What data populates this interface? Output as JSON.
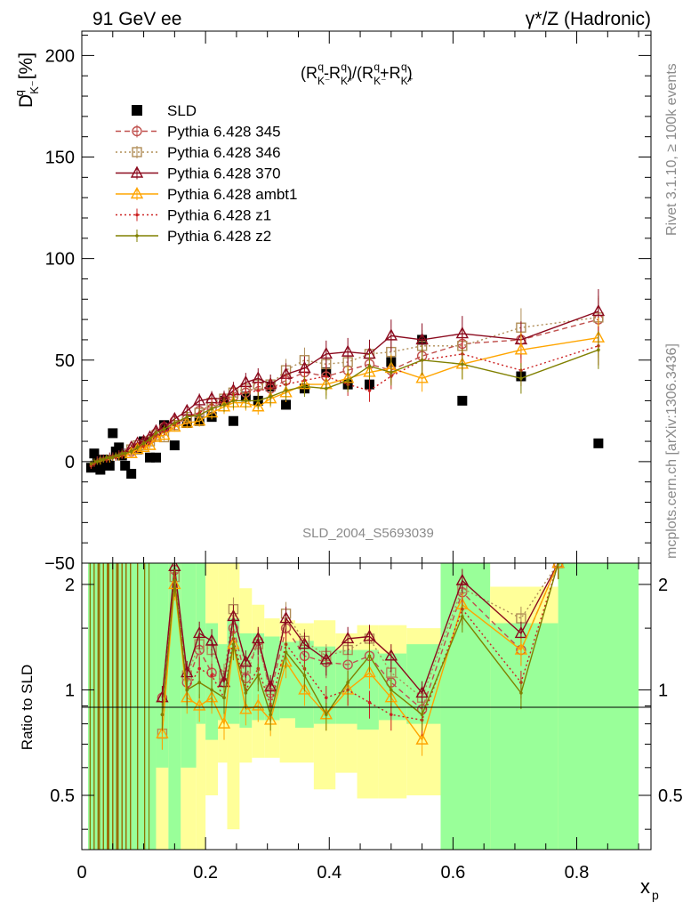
{
  "header": {
    "left": "91 GeV ee",
    "right": "γ*/Z (Hadronic)"
  },
  "side_labels": {
    "rivet": "Rivet 3.1.10, ≥ 100k events",
    "mcplots": "mcplots.cern.ch [arXiv:1306.3436]"
  },
  "watermark": "SLD_2004_S5693039",
  "colors": {
    "data": "#000000",
    "p345": "#c0504d",
    "p346": "#b08d57",
    "p370": "#8b0a1e",
    "ambt1": "#ffa500",
    "z1": "#cc2222",
    "z2": "#808000",
    "band_inner": "#99ff99",
    "band_outer": "#ffff99"
  },
  "chart_data": [
    {
      "type": "line",
      "role": "main",
      "ylabel": "D_K⁻^q [%]",
      "annotation": "(R_K⁻^q-R_K⁺^q)/(R_K⁻^q+R_K⁺^q)",
      "xlim": [
        0,
        0.92
      ],
      "ylim": [
        -50,
        212
      ],
      "yticks": [
        -50,
        0,
        50,
        100,
        150,
        200
      ],
      "xticks": [
        0,
        0.2,
        0.4,
        0.6,
        0.8
      ],
      "legend_position": "top-left",
      "x": [
        0.015,
        0.02,
        0.025,
        0.03,
        0.035,
        0.04,
        0.045,
        0.05,
        0.055,
        0.06,
        0.065,
        0.07,
        0.08,
        0.09,
        0.1,
        0.11,
        0.12,
        0.133,
        0.15,
        0.17,
        0.19,
        0.21,
        0.23,
        0.245,
        0.265,
        0.285,
        0.305,
        0.33,
        0.36,
        0.395,
        0.43,
        0.465,
        0.5,
        0.55,
        0.615,
        0.71,
        0.835
      ],
      "series": [
        {
          "name": "SLD",
          "style": "data",
          "values": [
            -3,
            4,
            0,
            -4,
            1,
            0,
            -2,
            14,
            5,
            7,
            3,
            -2,
            -6,
            6,
            10,
            2,
            2,
            18,
            8,
            19,
            20,
            22,
            30,
            20,
            32,
            30,
            37,
            28,
            36,
            44,
            38,
            38,
            49,
            60,
            30,
            42,
            9
          ]
        },
        {
          "name": "Pythia 6.428 345",
          "style": "dashed",
          "marker": "circle",
          "color_key": "p345",
          "values": [
            -1,
            0,
            1,
            2,
            1,
            2,
            2,
            2,
            3,
            3,
            3,
            4,
            5,
            7,
            9,
            11,
            14,
            17,
            20,
            21,
            25,
            26,
            30,
            32,
            34,
            37,
            36,
            40,
            44,
            42,
            45,
            48,
            45,
            52,
            58,
            60,
            70
          ]
        },
        {
          "name": "Pythia 6.428 346",
          "style": "dotted",
          "marker": "square",
          "color_key": "p346",
          "values": [
            -1,
            0,
            1,
            1,
            2,
            2,
            2,
            3,
            3,
            4,
            4,
            5,
            6,
            8,
            8,
            10,
            13,
            12,
            18,
            22,
            24,
            29,
            31,
            34,
            36,
            38,
            38,
            45,
            50,
            48,
            49,
            53,
            54,
            57,
            57,
            66,
            71
          ]
        },
        {
          "name": "Pythia 6.428 370",
          "style": "solid",
          "marker": "triangle",
          "color_key": "p370",
          "values": [
            -1,
            0,
            1,
            1,
            2,
            2,
            3,
            3,
            3,
            4,
            5,
            5,
            7,
            9,
            10,
            12,
            15,
            17,
            21,
            25,
            30,
            31,
            31,
            35,
            39,
            41,
            38,
            43,
            46,
            53,
            54,
            53,
            62,
            60,
            63,
            60,
            74
          ]
        },
        {
          "name": "Pythia 6.428 ambt1",
          "style": "solid",
          "marker": "triangle",
          "color_key": "ambt1",
          "values": [
            -2,
            -1,
            0,
            0,
            1,
            1,
            1,
            2,
            2,
            2,
            3,
            3,
            4,
            6,
            7,
            8,
            12,
            13,
            17,
            19,
            20,
            24,
            27,
            29,
            29,
            27,
            31,
            34,
            38,
            38,
            41,
            44,
            46,
            41,
            48,
            55,
            61
          ]
        },
        {
          "name": "Pythia 6.428 z1",
          "style": "dotted",
          "marker": "dot",
          "color_key": "z1",
          "values": [
            -2,
            -1,
            0,
            1,
            1,
            1,
            2,
            2,
            2,
            3,
            3,
            4,
            5,
            7,
            8,
            10,
            13,
            15,
            18,
            22,
            24,
            28,
            30,
            33,
            34,
            35,
            36,
            38,
            40,
            42,
            38,
            35,
            42,
            50,
            53,
            45,
            57
          ]
        },
        {
          "name": "Pythia 6.428 z2",
          "style": "solid",
          "marker": "dot",
          "color_key": "z2",
          "values": [
            -1,
            0,
            0,
            1,
            1,
            2,
            2,
            2,
            3,
            3,
            4,
            4,
            5,
            7,
            9,
            11,
            14,
            16,
            19,
            22,
            23,
            26,
            28,
            30,
            30,
            30,
            32,
            35,
            37,
            36,
            40,
            47,
            44,
            50,
            48,
            41,
            55
          ]
        }
      ]
    },
    {
      "type": "line",
      "role": "ratio",
      "ylabel": "Ratio to SLD",
      "xlabel": "x_p",
      "xlim": [
        0,
        0.92
      ],
      "ylim": [
        0.35,
        2.3
      ],
      "yticks": [
        0.5,
        1,
        2
      ],
      "xticks": [
        0,
        0.2,
        0.4,
        0.6,
        0.8
      ],
      "bands": [
        {
          "x0": 0.01,
          "x1": 0.12,
          "inner": [
            0.35,
            2.3
          ],
          "outer": [
            0.35,
            2.3
          ]
        },
        {
          "x0": 0.12,
          "x1": 0.14,
          "inner": [
            0.6,
            2.3
          ],
          "outer": [
            0.35,
            2.3
          ]
        },
        {
          "x0": 0.14,
          "x1": 0.16,
          "inner": [
            0.35,
            2.3
          ],
          "outer": [
            0.35,
            2.3
          ]
        },
        {
          "x0": 0.16,
          "x1": 0.185,
          "inner": [
            0.6,
            2.3
          ],
          "outer": [
            0.35,
            2.3
          ]
        },
        {
          "x0": 0.185,
          "x1": 0.2,
          "inner": [
            0.8,
            2.3
          ],
          "outer": [
            0.35,
            2.3
          ]
        },
        {
          "x0": 0.2,
          "x1": 0.22,
          "inner": [
            0.72,
            1.55
          ],
          "outer": [
            0.5,
            2.3
          ]
        },
        {
          "x0": 0.22,
          "x1": 0.235,
          "inner": [
            0.82,
            1.35
          ],
          "outer": [
            0.62,
            2.3
          ]
        },
        {
          "x0": 0.235,
          "x1": 0.255,
          "inner": [
            0.8,
            1.6
          ],
          "outer": [
            0.4,
            2.3
          ]
        },
        {
          "x0": 0.255,
          "x1": 0.275,
          "inner": [
            0.78,
            1.45
          ],
          "outer": [
            0.62,
            1.95
          ]
        },
        {
          "x0": 0.275,
          "x1": 0.295,
          "inner": [
            0.82,
            1.45
          ],
          "outer": [
            0.64,
            1.75
          ]
        },
        {
          "x0": 0.295,
          "x1": 0.32,
          "inner": [
            0.82,
            1.42
          ],
          "outer": [
            0.64,
            1.6
          ]
        },
        {
          "x0": 0.32,
          "x1": 0.345,
          "inner": [
            0.83,
            1.37
          ],
          "outer": [
            0.62,
            1.58
          ]
        },
        {
          "x0": 0.345,
          "x1": 0.375,
          "inner": [
            0.78,
            1.38
          ],
          "outer": [
            0.62,
            1.55
          ]
        },
        {
          "x0": 0.375,
          "x1": 0.41,
          "inner": [
            0.8,
            1.33
          ],
          "outer": [
            0.52,
            1.58
          ]
        },
        {
          "x0": 0.41,
          "x1": 0.445,
          "inner": [
            0.8,
            1.3
          ],
          "outer": [
            0.58,
            1.45
          ]
        },
        {
          "x0": 0.445,
          "x1": 0.48,
          "inner": [
            0.77,
            1.3
          ],
          "outer": [
            0.49,
            1.53
          ]
        },
        {
          "x0": 0.48,
          "x1": 0.525,
          "inner": [
            0.82,
            1.27
          ],
          "outer": [
            0.49,
            1.53
          ]
        },
        {
          "x0": 0.525,
          "x1": 0.58,
          "inner": [
            0.8,
            1.35
          ],
          "outer": [
            0.5,
            1.5
          ]
        },
        {
          "x0": 0.58,
          "x1": 0.66,
          "inner": [
            0.35,
            2.3
          ],
          "outer": [
            0.35,
            2.3
          ]
        },
        {
          "x0": 0.66,
          "x1": 0.77,
          "inner": [
            0.35,
            1.55
          ],
          "outer": [
            0.35,
            1.97
          ]
        },
        {
          "x0": 0.77,
          "x1": 0.9,
          "inner": [
            0.35,
            2.3
          ],
          "outer": [
            0.35,
            2.3
          ]
        }
      ],
      "x": [
        0.13,
        0.15,
        0.17,
        0.19,
        0.21,
        0.23,
        0.245,
        0.265,
        0.285,
        0.305,
        0.33,
        0.36,
        0.395,
        0.43,
        0.465,
        0.5,
        0.55,
        0.615,
        0.71,
        0.77
      ],
      "series": [
        {
          "name": "Pythia 6.428 345",
          "color_key": "p345",
          "style": "dashed",
          "marker": "circle",
          "values": [
            0.95,
            2.2,
            1.05,
            1.3,
            1.12,
            1.05,
            1.5,
            1.08,
            1.38,
            0.98,
            1.5,
            1.25,
            1.2,
            1.18,
            1.25,
            1.05,
            0.88,
            1.9,
            1.3,
            2.3
          ]
        },
        {
          "name": "Pythia 6.428 346",
          "color_key": "p346",
          "style": "dotted",
          "marker": "square",
          "values": [
            0.75,
            2.1,
            1.1,
            1.35,
            1.3,
            1.1,
            1.7,
            1.15,
            1.35,
            1.0,
            1.65,
            1.38,
            1.25,
            1.3,
            1.4,
            1.12,
            0.95,
            1.95,
            1.6,
            2.3
          ]
        },
        {
          "name": "Pythia 6.428 370",
          "color_key": "p370",
          "style": "solid",
          "marker": "triangle",
          "values": [
            0.95,
            2.25,
            1.12,
            1.45,
            1.38,
            1.05,
            1.62,
            1.2,
            1.4,
            1.02,
            1.6,
            1.35,
            1.22,
            1.4,
            1.42,
            1.25,
            0.98,
            2.05,
            1.45,
            2.3
          ]
        },
        {
          "name": "Pythia 6.428 ambt1",
          "color_key": "ambt1",
          "style": "solid",
          "marker": "triangle",
          "values": [
            0.75,
            2.0,
            0.95,
            0.9,
            0.95,
            0.8,
            1.35,
            0.88,
            0.9,
            0.82,
            1.2,
            1.0,
            0.85,
            1.0,
            1.12,
            0.95,
            0.72,
            1.75,
            1.3,
            2.3
          ]
        },
        {
          "name": "Pythia 6.428 z1",
          "color_key": "z1",
          "style": "dotted",
          "marker": "dot",
          "values": [
            0.85,
            2.1,
            1.0,
            1.15,
            1.1,
            0.95,
            1.4,
            1.0,
            1.15,
            0.9,
            1.35,
            1.15,
            0.95,
            1.0,
            0.92,
            0.85,
            0.82,
            1.7,
            1.05,
            2.3
          ]
        },
        {
          "name": "Pythia 6.428 z2",
          "color_key": "z2",
          "style": "solid",
          "marker": "dot",
          "values": [
            0.85,
            2.05,
            1.0,
            1.05,
            1.0,
            0.95,
            1.35,
            0.98,
            1.1,
            0.85,
            1.28,
            1.1,
            0.85,
            1.05,
            1.25,
            1.0,
            0.85,
            1.62,
            0.98,
            2.3
          ]
        }
      ]
    }
  ]
}
